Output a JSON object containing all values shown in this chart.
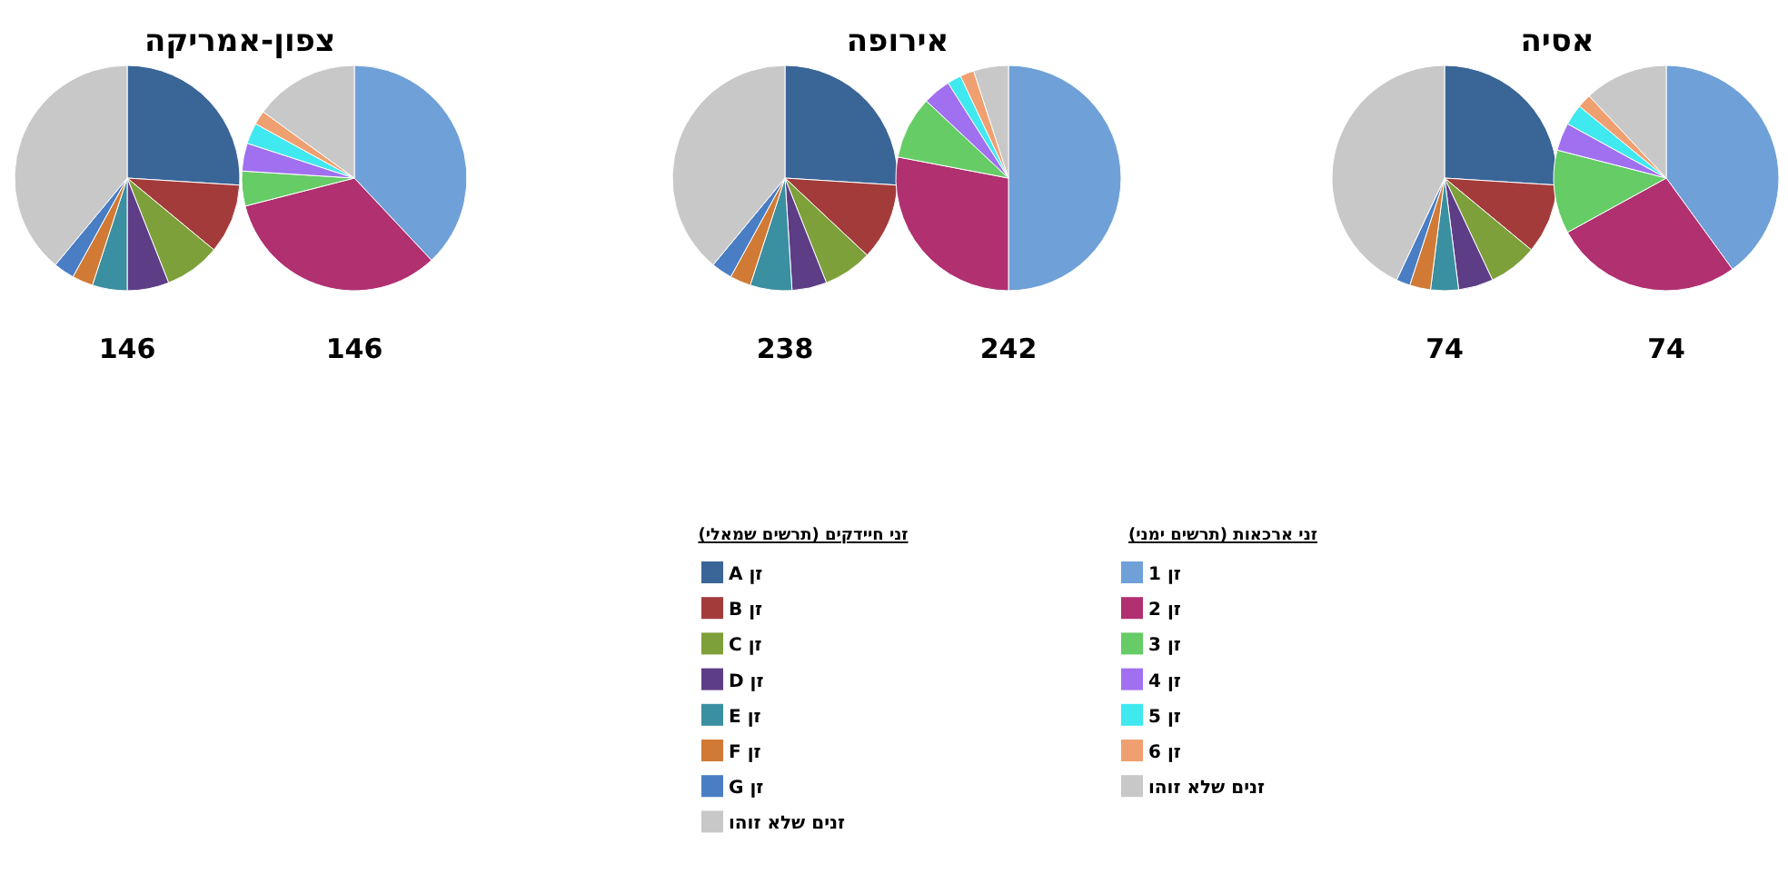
{
  "chart_data": [
    {
      "type": "pie",
      "title": "צפון-אמריקה",
      "annotations": [
        "146"
      ],
      "categories": [
        null,
        null,
        null,
        null,
        null,
        null,
        null,
        null
      ],
      "values": [
        26,
        10,
        8,
        6,
        5,
        3,
        3,
        39
      ],
      "colors": [
        "#3a6597",
        "#a33b3b",
        "#7ea03a",
        "#5e3d87",
        "#3a8fa0",
        "#d07a35",
        "#4a7ec4",
        "#c8c8c8"
      ]
    },
    {
      "type": "pie",
      "annotations": [
        "146"
      ],
      "categories": [
        null,
        null,
        null,
        null,
        null,
        null,
        null
      ],
      "values": [
        38,
        33,
        5,
        4,
        3,
        2,
        15
      ],
      "colors": [
        "#6fa0d8",
        "#b03070",
        "#66cc66",
        "#a070f0",
        "#40e8f0",
        "#f0a070",
        "#c8c8c8"
      ]
    },
    {
      "type": "pie",
      "title": "אירופה",
      "annotations": [
        "238"
      ],
      "legend": "bottom",
      "legend_title": "זני חיידקים (תרשים שמאלי)",
      "categories": [
        "זן A",
        "זן B",
        "זן C",
        "זן D",
        "זן E",
        "זן F",
        "זן G",
        "זנים שלא זוהו"
      ],
      "values": [
        26,
        11,
        7,
        5,
        6,
        3,
        3,
        39
      ],
      "colors": [
        "#3a6597",
        "#a33b3b",
        "#7ea03a",
        "#5e3d87",
        "#3a8fa0",
        "#d07a35",
        "#4a7ec4",
        "#c8c8c8"
      ]
    },
    {
      "type": "pie",
      "annotations": [
        "242"
      ],
      "legend": "bottom",
      "legend_title": "זני ארכאות (תרשים ימני)",
      "categories": [
        "זן 1",
        "זן 2",
        "זן 3",
        "זן 4",
        "זן 5",
        "זן 6",
        "זנים שלא זוהו"
      ],
      "values": [
        50,
        28,
        9,
        4,
        2,
        2,
        5
      ],
      "colors": [
        "#6fa0d8",
        "#b03070",
        "#66cc66",
        "#a070f0",
        "#40e8f0",
        "#f0a070",
        "#c8c8c8"
      ]
    },
    {
      "type": "pie",
      "title": "אסיה",
      "annotations": [
        "74"
      ],
      "categories": [
        null,
        null,
        null,
        null,
        null,
        null,
        null,
        null
      ],
      "values": [
        26,
        10,
        7,
        5,
        4,
        3,
        2,
        43
      ],
      "colors": [
        "#3a6597",
        "#a33b3b",
        "#7ea03a",
        "#5e3d87",
        "#3a8fa0",
        "#d07a35",
        "#4a7ec4",
        "#c8c8c8"
      ]
    },
    {
      "type": "pie",
      "annotations": [
        "74"
      ],
      "categories": [
        null,
        null,
        null,
        null,
        null,
        null,
        null
      ],
      "values": [
        40,
        27,
        12,
        4,
        3,
        2,
        12
      ],
      "colors": [
        "#6fa0d8",
        "#b03070",
        "#66cc66",
        "#a070f0",
        "#40e8f0",
        "#f0a070",
        "#c8c8c8"
      ]
    }
  ]
}
